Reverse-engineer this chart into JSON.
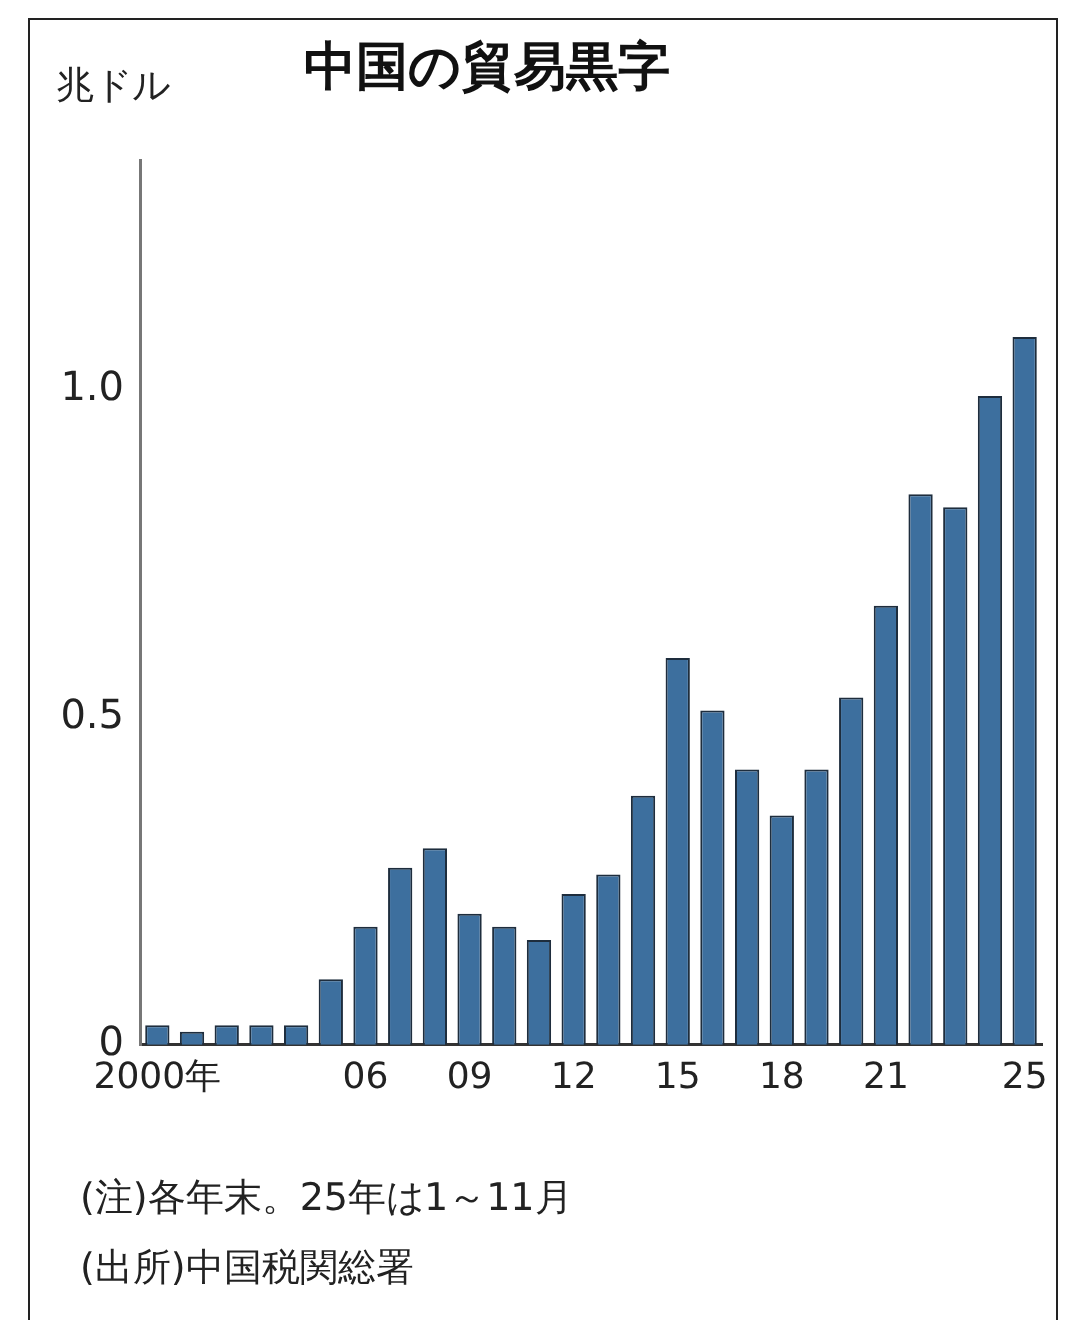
{
  "chart_data": {
    "type": "bar",
    "title": "中国の貿易黒字",
    "ylabel": "兆ドル",
    "annotations": [
      "(注)各年末。25年は1～11月",
      "(出所)中国税関総署"
    ],
    "categories": [
      "2000年",
      null,
      null,
      null,
      null,
      null,
      "06",
      null,
      null,
      "09",
      null,
      null,
      "12",
      null,
      null,
      "15",
      null,
      null,
      "18",
      null,
      null,
      "21",
      null,
      null,
      null,
      "25"
    ],
    "values": [
      0.03,
      0.02,
      0.03,
      0.03,
      0.03,
      0.1,
      0.18,
      0.27,
      0.3,
      0.2,
      0.18,
      0.16,
      0.23,
      0.26,
      0.38,
      0.59,
      0.51,
      0.42,
      0.35,
      0.42,
      0.53,
      0.67,
      0.84,
      0.82,
      0.99,
      1.08
    ],
    "color": "#3d6f9e",
    "ylim": [
      0,
      1.35
    ],
    "yticks": [
      0,
      0.5,
      {
        "value": 1,
        "label": "1.0"
      }
    ]
  }
}
